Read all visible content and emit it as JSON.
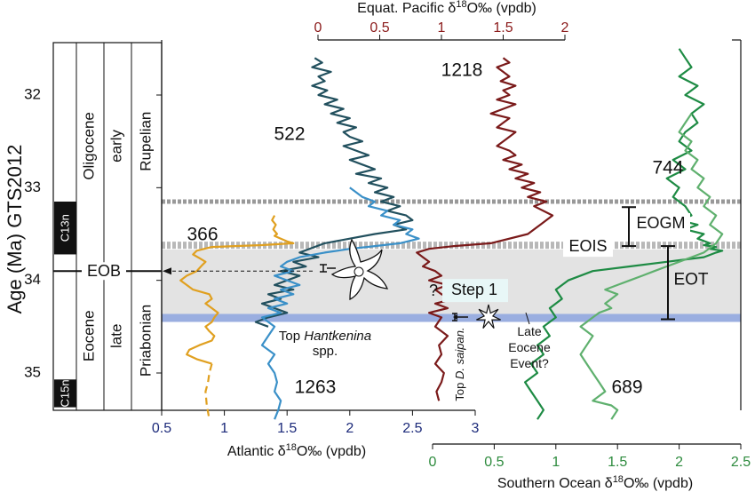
{
  "chart_data": {
    "type": "line",
    "y_axis": {
      "label": "Age (Ma) GTS2012",
      "ticks": [
        32,
        33,
        34,
        35
      ],
      "range": [
        31.55,
        35.5
      ],
      "inverted": true
    },
    "x_axes": [
      {
        "id": "pac",
        "position": "top",
        "label": "Equat. Pacific δ18O‰ (vpdb)",
        "label_main": "Equat. Pacific δ",
        "label_sup": "18",
        "label_tail": "O‰ (vpdb)",
        "range": [
          0,
          2
        ],
        "ticks": [
          0,
          0.5,
          1,
          1.5,
          2
        ],
        "tick_labels": [
          "0",
          "0.5",
          "1",
          "1.5",
          "2"
        ],
        "color": "#8b1a1a"
      },
      {
        "id": "atl",
        "position": "bottom",
        "label": "Atlantic δ18O‰ (vpdb)",
        "label_main": "Atlantic δ",
        "label_sup": "18",
        "label_tail": "O‰ (vpdb)",
        "range": [
          0.5,
          3
        ],
        "ticks": [
          0.5,
          1,
          1.5,
          2,
          2.5,
          3
        ],
        "tick_labels": [
          "0.5",
          "1",
          "1.5",
          "2",
          "2.5",
          "3"
        ],
        "color": "#1c2a7a"
      },
      {
        "id": "so",
        "position": "bottom-offset",
        "label": "Southern Ocean δ18O‰ (vpdb)",
        "label_main": "Southern Ocean δ",
        "label_sup": "18",
        "label_tail": "O‰ (vpdb)",
        "range": [
          0,
          2.5
        ],
        "ticks": [
          0,
          0.5,
          1,
          1.5,
          2,
          2.5
        ],
        "tick_labels": [
          "0",
          "0.5",
          "1",
          "1.5",
          "2",
          "2.5"
        ],
        "color": "#2e8b3e"
      }
    ],
    "stratigraphy": {
      "magnetochrons": [
        {
          "label": "C13n",
          "top": 33.15,
          "bottom": 33.72
        },
        {
          "label": "C15n",
          "top": 35.07,
          "bottom": 35.37
        }
      ],
      "epochs": [
        {
          "label": "Oligocene",
          "top": 31.55,
          "bottom": 33.9
        },
        {
          "label": "Eocene",
          "top": 33.9,
          "bottom": 35.5
        }
      ],
      "subepochs": [
        {
          "label": "early",
          "top": 31.55,
          "bottom": 33.9
        },
        {
          "label": "late",
          "top": 33.9,
          "bottom": 35.5
        }
      ],
      "stages": [
        {
          "label": "Rupelian",
          "top": 31.55,
          "bottom": 33.9
        },
        {
          "label": "Priabonian",
          "top": 33.9,
          "bottom": 35.5
        }
      ],
      "boundary_label": "EOB",
      "boundary_age": 33.9
    },
    "intervals": [
      {
        "label": "EOGM",
        "top": 33.15,
        "bottom": 33.63
      },
      {
        "label": "EOT",
        "top": 33.63,
        "bottom": 34.42
      }
    ],
    "events": [
      {
        "label": "EOIS",
        "age": 33.65
      },
      {
        "label": "Step 1",
        "age": 34.1
      },
      {
        "label": "Late Eocene Event?",
        "age": 34.38
      }
    ],
    "datums": [
      {
        "label": "Top Hantkenina spp.",
        "label_pre": "Top ",
        "label_italic": "Hantkenina",
        "label_line2": "spp.",
        "age": 33.9
      },
      {
        "label": "Top D. saipan.",
        "label_pre": "Top ",
        "label_italic": "D. saipan.",
        "age": 34.44
      }
    ],
    "annotations": [
      "?"
    ],
    "series": [
      {
        "name": "366",
        "axis": "atl",
        "color": "#e0a020",
        "x": [
          1.4,
          1.38,
          1.41,
          1.39,
          1.42,
          1.4,
          1.45,
          1.5,
          1.55,
          1.3,
          0.9,
          0.78,
          0.75,
          0.8,
          0.85,
          0.82,
          0.78,
          0.7,
          0.65,
          0.7,
          0.75,
          0.88,
          0.9,
          0.85,
          0.9,
          0.95,
          0.92,
          0.9,
          0.85,
          0.88,
          0.92,
          0.9,
          0.8,
          0.72,
          0.7,
          0.78,
          0.9
        ],
        "y": [
          33.3,
          33.35,
          33.4,
          33.45,
          33.5,
          33.52,
          33.55,
          33.58,
          33.6,
          33.62,
          33.64,
          33.68,
          33.72,
          33.76,
          33.8,
          33.84,
          33.9,
          33.95,
          34.0,
          34.05,
          34.1,
          34.15,
          34.2,
          34.25,
          34.3,
          34.35,
          34.4,
          34.45,
          34.5,
          34.55,
          34.6,
          34.65,
          34.7,
          34.75,
          34.8,
          34.85,
          34.9
        ]
      },
      {
        "name": "366",
        "axis": "atl",
        "dashed": true,
        "color": "#e0a020",
        "x": [
          0.9,
          0.88,
          0.87,
          0.85,
          0.86,
          0.88
        ],
        "y": [
          34.9,
          35.0,
          35.1,
          35.2,
          35.35,
          35.5
        ]
      },
      {
        "name": "522",
        "axis": "atl",
        "color": "#22505e",
        "x": [
          1.72,
          1.78,
          1.7,
          1.85,
          1.75,
          1.8,
          1.7,
          1.82,
          1.75,
          1.9,
          1.8,
          1.95,
          1.85,
          2.0,
          1.9,
          2.05,
          1.95,
          2.0,
          2.1,
          1.95,
          2.05,
          2.15,
          2.0,
          2.1,
          2.2,
          2.05,
          2.25,
          2.15,
          2.3,
          2.2,
          2.35,
          2.25,
          2.4,
          2.3,
          2.45,
          2.5,
          2.35,
          2.45,
          2.2,
          2.0,
          1.8,
          1.7,
          1.6,
          1.75,
          1.55,
          1.65,
          1.45,
          1.6,
          1.5,
          1.4,
          1.55,
          1.35,
          1.45,
          1.3,
          1.4,
          1.5,
          1.35,
          1.25,
          1.35
        ],
        "y": [
          31.6,
          31.65,
          31.7,
          31.75,
          31.8,
          31.85,
          31.9,
          31.95,
          32.0,
          32.05,
          32.1,
          32.15,
          32.2,
          32.25,
          32.3,
          32.35,
          32.4,
          32.45,
          32.5,
          32.55,
          32.6,
          32.65,
          32.7,
          32.75,
          32.8,
          32.85,
          32.9,
          32.95,
          33.0,
          33.05,
          33.1,
          33.15,
          33.2,
          33.25,
          33.3,
          33.35,
          33.4,
          33.45,
          33.5,
          33.55,
          33.6,
          33.65,
          33.7,
          33.75,
          33.8,
          33.85,
          33.9,
          33.95,
          34.0,
          34.05,
          34.1,
          34.15,
          34.2,
          34.25,
          34.3,
          34.35,
          34.4,
          34.45,
          34.5
        ]
      },
      {
        "name": "1263",
        "axis": "atl",
        "color": "#3a90c8",
        "x": [
          2.0,
          2.05,
          2.1,
          2.2,
          2.15,
          2.3,
          2.25,
          2.4,
          2.35,
          2.5,
          2.45,
          2.55,
          2.4,
          2.2,
          2.0,
          1.8,
          1.6,
          1.5,
          1.45,
          1.55,
          1.4,
          1.5,
          1.6,
          1.45,
          1.55,
          1.4,
          1.5,
          1.35,
          1.45,
          1.3,
          1.4,
          1.35,
          1.3,
          1.4,
          1.35,
          1.4,
          1.42,
          1.4,
          1.45,
          1.43,
          1.4
        ],
        "y": [
          33.0,
          33.05,
          33.1,
          33.15,
          33.2,
          33.25,
          33.3,
          33.35,
          33.4,
          33.45,
          33.5,
          33.55,
          33.6,
          33.63,
          33.66,
          33.7,
          33.75,
          33.8,
          33.85,
          33.9,
          33.95,
          34.0,
          34.05,
          34.1,
          34.15,
          34.2,
          34.25,
          34.3,
          34.35,
          34.4,
          34.5,
          34.6,
          34.7,
          34.8,
          34.9,
          35.0,
          35.1,
          35.2,
          35.3,
          35.4,
          35.5
        ]
      },
      {
        "name": "1218",
        "axis": "pac",
        "color": "#7a1a1a",
        "x": [
          1.5,
          1.55,
          1.45,
          1.5,
          1.55,
          1.48,
          1.6,
          1.5,
          1.55,
          1.45,
          1.6,
          1.5,
          1.4,
          1.55,
          1.5,
          1.45,
          1.6,
          1.55,
          1.5,
          1.45,
          1.55,
          1.6,
          1.5,
          1.65,
          1.55,
          1.7,
          1.6,
          1.75,
          1.65,
          1.8,
          1.7,
          1.85,
          1.75,
          1.9,
          1.8,
          1.7,
          1.4,
          1.1,
          0.9,
          0.8,
          0.85,
          0.9,
          0.85,
          0.95,
          1.0,
          0.9,
          1.05,
          0.95,
          1.0,
          1.1,
          0.95,
          1.05,
          0.9,
          1.0,
          0.95,
          1.05,
          0.98,
          1.0,
          0.95,
          1.02,
          1.0,
          0.96,
          0.98
        ],
        "y": [
          31.6,
          31.65,
          31.7,
          31.75,
          31.8,
          31.85,
          31.9,
          31.95,
          32.0,
          32.05,
          32.1,
          32.15,
          32.2,
          32.25,
          32.3,
          32.35,
          32.4,
          32.45,
          32.5,
          32.55,
          32.6,
          32.65,
          32.7,
          32.75,
          32.8,
          32.85,
          32.9,
          32.95,
          33.0,
          33.05,
          33.1,
          33.15,
          33.2,
          33.3,
          33.4,
          33.5,
          33.6,
          33.63,
          33.66,
          33.7,
          33.75,
          33.8,
          33.85,
          33.9,
          33.95,
          34.0,
          34.05,
          34.1,
          34.15,
          34.2,
          34.25,
          34.3,
          34.35,
          34.4,
          34.5,
          34.6,
          34.7,
          34.8,
          34.9,
          35.0,
          35.1,
          35.2,
          35.3
        ]
      },
      {
        "name": "744",
        "axis": "so",
        "color": "#1e8b44",
        "x": [
          2.0,
          2.05,
          2.1,
          2.0,
          2.15,
          2.05,
          2.2,
          2.1,
          2.15,
          2.05,
          2.0,
          2.1,
          1.95,
          2.05,
          1.9,
          2.0,
          1.95,
          2.05,
          2.1,
          2.0,
          2.15,
          2.05,
          2.2,
          2.15,
          2.25,
          2.2,
          2.3,
          2.25,
          2.35,
          2.3,
          2.2,
          1.9,
          1.6,
          1.3,
          1.1,
          1.0,
          1.05,
          0.95,
          1.0,
          0.9,
          0.95,
          0.85,
          0.9,
          0.8,
          0.85,
          0.75,
          0.8,
          0.85,
          0.9,
          0.85
        ],
        "y": [
          31.5,
          31.6,
          31.7,
          31.8,
          31.9,
          32.0,
          32.1,
          32.2,
          32.3,
          32.4,
          32.5,
          32.6,
          32.7,
          32.8,
          32.9,
          33.0,
          33.1,
          33.2,
          33.3,
          33.35,
          33.4,
          33.45,
          33.5,
          33.55,
          33.6,
          33.62,
          33.64,
          33.66,
          33.68,
          33.7,
          33.75,
          33.8,
          33.85,
          33.9,
          34.0,
          34.1,
          34.2,
          34.3,
          34.4,
          34.5,
          34.6,
          34.7,
          34.8,
          34.9,
          35.0,
          35.1,
          35.2,
          35.3,
          35.4,
          35.5
        ]
      },
      {
        "name": "689",
        "axis": "so",
        "color": "#5fb06e",
        "x": [
          2.1,
          2.05,
          2.0,
          2.1,
          2.05,
          2.15,
          2.1,
          2.2,
          2.15,
          2.25,
          2.2,
          2.3,
          2.25,
          2.35,
          2.3,
          2.25,
          2.2,
          2.1,
          2.0,
          1.9,
          1.8,
          1.7,
          1.6,
          1.5,
          1.4,
          1.5,
          1.45,
          1.4,
          1.45,
          1.35,
          1.3,
          1.25,
          1.2,
          1.3,
          1.25,
          1.2,
          1.25,
          1.3,
          1.35,
          1.4,
          1.3,
          1.45,
          1.5,
          1.45
        ],
        "y": [
          32.2,
          32.3,
          32.4,
          32.5,
          32.6,
          32.7,
          32.8,
          32.9,
          33.0,
          33.1,
          33.2,
          33.3,
          33.4,
          33.5,
          33.6,
          33.65,
          33.7,
          33.75,
          33.8,
          33.85,
          33.9,
          33.95,
          34.0,
          34.05,
          34.1,
          34.15,
          34.2,
          34.25,
          34.3,
          34.35,
          34.4,
          34.45,
          34.5,
          34.6,
          34.7,
          34.8,
          34.9,
          35.0,
          35.1,
          35.2,
          35.3,
          35.35,
          35.4,
          35.5
        ]
      }
    ]
  }
}
